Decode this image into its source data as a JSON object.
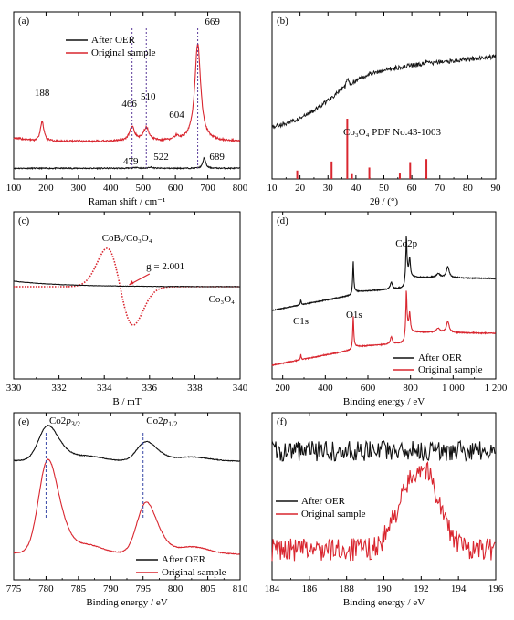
{
  "figure": {
    "colors": {
      "black": "#111111",
      "red": "#d9262f"
    }
  },
  "chart_data": [
    {
      "id": "a",
      "type": "line",
      "panel_label": "(a)",
      "xlabel": "Raman shift / cm⁻¹",
      "xlim": [
        100,
        800
      ],
      "xticks": [
        100,
        200,
        300,
        400,
        500,
        600,
        700,
        800
      ],
      "legend": {
        "placement": "top-left",
        "entries": [
          "After OER",
          "Original sample"
        ]
      },
      "series": [
        {
          "name": "After OER",
          "color": "#111111",
          "baseline": 0.3,
          "noise": 0.25,
          "peaks": [
            [
              479,
              0.5,
              6
            ],
            [
              522,
              0.6,
              6
            ],
            [
              689,
              4.8,
              5
            ]
          ]
        },
        {
          "name": "Original sample",
          "color": "#d9262f",
          "baseline": 12.6,
          "noise": 0.45,
          "peaks": [
            [
              188,
              9.5,
              6
            ],
            [
              466,
              6.3,
              10
            ],
            [
              510,
              6.0,
              10
            ],
            [
              604,
              1.8,
              9
            ],
            [
              669,
              44.3,
              11
            ]
          ]
        }
      ],
      "annotations": [
        {
          "text": "188",
          "x": 188,
          "color": "#111111"
        },
        {
          "text": "466",
          "x": 466,
          "color": "#111111"
        },
        {
          "text": "510",
          "x": 510,
          "color": "#111111"
        },
        {
          "text": "604",
          "x": 604,
          "color": "#111111"
        },
        {
          "text": "669",
          "x": 669,
          "color": "#111111"
        },
        {
          "text": "479",
          "x": 479,
          "color": "#d9262f"
        },
        {
          "text": "522",
          "x": 522,
          "color": "#d9262f"
        },
        {
          "text": "689",
          "x": 689,
          "color": "#d9262f"
        }
      ]
    },
    {
      "id": "b",
      "type": "line",
      "panel_label": "(b)",
      "xlabel": "2θ / (°)",
      "xlim": [
        10,
        90
      ],
      "xticks": [
        10,
        20,
        30,
        40,
        50,
        60,
        70,
        80,
        90
      ],
      "series": [
        {
          "name": "",
          "color": "#111111",
          "description": "broad amorphous rise, weak peak at 36.9"
        }
      ],
      "reference_label": "Co₃O₄ PDF No.43-1003",
      "reference_lines": [
        {
          "x": 19.0,
          "rel": 0.14
        },
        {
          "x": 31.3,
          "rel": 0.29
        },
        {
          "x": 36.9,
          "rel": 1.0
        },
        {
          "x": 38.6,
          "rel": 0.08
        },
        {
          "x": 44.8,
          "rel": 0.19
        },
        {
          "x": 55.7,
          "rel": 0.09
        },
        {
          "x": 59.4,
          "rel": 0.28
        },
        {
          "x": 65.2,
          "rel": 0.33
        }
      ]
    },
    {
      "id": "c",
      "type": "line",
      "panel_label": "(c)",
      "xlabel": "B / mT",
      "xlim": [
        330,
        340
      ],
      "xticks": [
        330,
        332,
        334,
        336,
        338,
        340
      ],
      "series": [
        {
          "name": "CoBₓ/Co₃O₄",
          "color": "#d9262f",
          "style": "dotted",
          "center": 334.7,
          "width": 0.58
        },
        {
          "name": "Co₃O₄",
          "color": "#111111",
          "style": "solid"
        }
      ],
      "annotations": [
        {
          "text": "g = 2.001",
          "color": "#111111"
        }
      ]
    },
    {
      "id": "d",
      "type": "line",
      "panel_label": "(d)",
      "xlabel": "Binding energy / eV",
      "xlim": [
        150,
        1200
      ],
      "xticks": [
        200,
        400,
        600,
        800,
        1000,
        1200
      ],
      "xticklabels": [
        "200",
        "400",
        "600",
        "800",
        "1 000",
        "1 200"
      ],
      "legend": {
        "placement": "bottom-right",
        "entries": [
          "After OER",
          "Original sample"
        ]
      },
      "series": [
        {
          "name": "After OER",
          "color": "#111111"
        },
        {
          "name": "Original sample",
          "color": "#d9262f"
        }
      ],
      "annotations": [
        {
          "text": "Co2p",
          "x": 780
        },
        {
          "text": "C1s",
          "x": 285
        },
        {
          "text": "O1s",
          "x": 531
        }
      ]
    },
    {
      "id": "e",
      "type": "line",
      "panel_label": "(e)",
      "xlabel": "Binding energy / eV",
      "xlim": [
        775,
        810
      ],
      "xticks": [
        775,
        780,
        785,
        790,
        795,
        800,
        805,
        810
      ],
      "legend": {
        "placement": "bottom-right",
        "entries": [
          "After OER",
          "Original sample"
        ]
      },
      "series": [
        {
          "name": "After OER",
          "color": "#111111"
        },
        {
          "name": "Original sample",
          "color": "#d9262f"
        }
      ],
      "annotations": [
        {
          "text": "Co2p3/2",
          "x": 780
        },
        {
          "text": "Co2p1/2",
          "x": 795
        }
      ]
    },
    {
      "id": "f",
      "type": "line",
      "panel_label": "(f)",
      "xlabel": "Binding energy / eV",
      "xlim": [
        184,
        196
      ],
      "xticks": [
        184,
        186,
        188,
        190,
        192,
        194,
        196
      ],
      "legend": {
        "placement": "middle-left",
        "entries": [
          "After OER",
          "Original sample"
        ]
      },
      "series": [
        {
          "name": "After OER",
          "color": "#111111"
        },
        {
          "name": "Original sample",
          "color": "#d9262f",
          "peak_center": 192.1
        }
      ]
    }
  ]
}
